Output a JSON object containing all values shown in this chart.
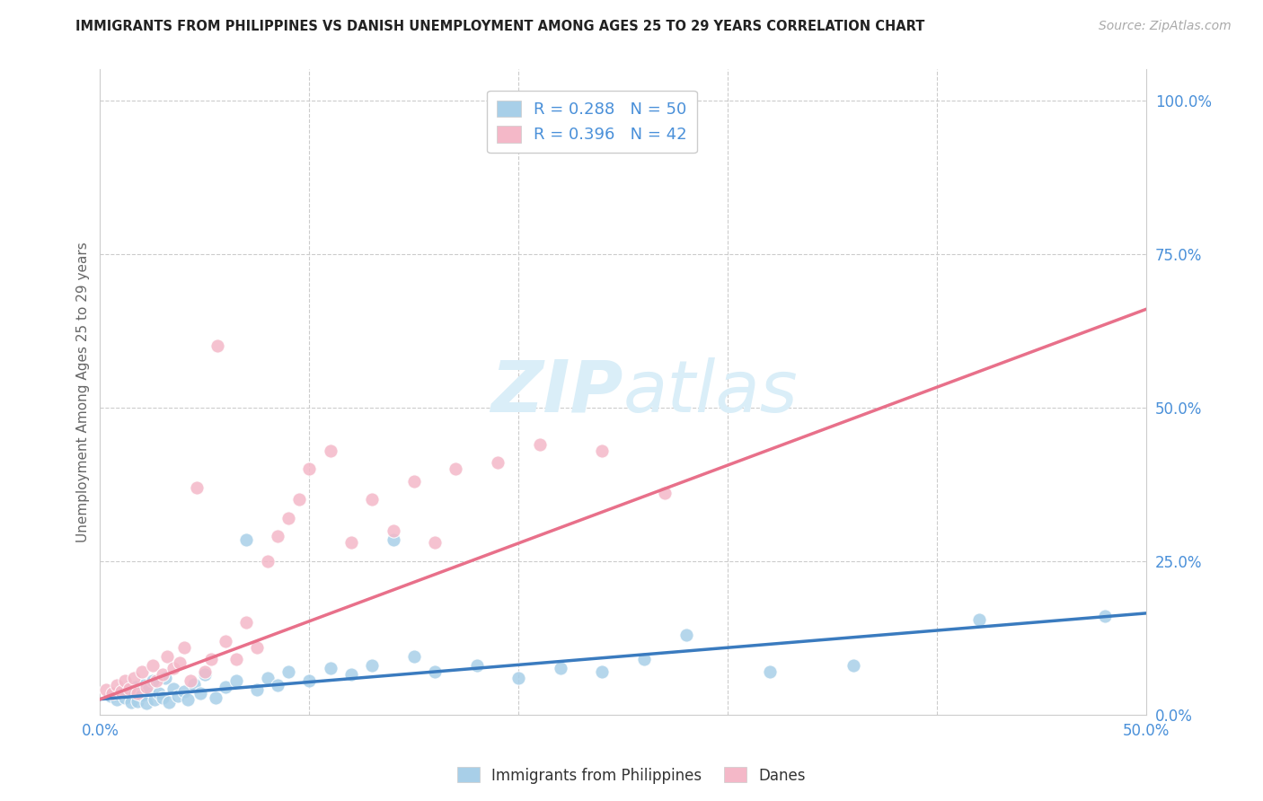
{
  "title": "IMMIGRANTS FROM PHILIPPINES VS DANISH UNEMPLOYMENT AMONG AGES 25 TO 29 YEARS CORRELATION CHART",
  "source": "Source: ZipAtlas.com",
  "ylabel": "Unemployment Among Ages 25 to 29 years",
  "xlim": [
    0.0,
    0.5
  ],
  "ylim": [
    0.0,
    1.05
  ],
  "legend_label1": "Immigrants from Philippines",
  "legend_label2": "Danes",
  "R1": 0.288,
  "N1": 50,
  "R2": 0.396,
  "N2": 42,
  "color_blue": "#a8cfe8",
  "color_pink": "#f4b8c8",
  "color_blue_line": "#3a7bbf",
  "color_pink_line": "#e8708a",
  "color_axis_text": "#4a90d9",
  "watermark_color": "#daeef8",
  "blue_scatter_x": [
    0.005,
    0.008,
    0.01,
    0.012,
    0.015,
    0.016,
    0.017,
    0.018,
    0.02,
    0.021,
    0.022,
    0.023,
    0.025,
    0.026,
    0.028,
    0.03,
    0.031,
    0.033,
    0.035,
    0.037,
    0.04,
    0.042,
    0.045,
    0.048,
    0.05,
    0.055,
    0.06,
    0.065,
    0.07,
    0.075,
    0.08,
    0.085,
    0.09,
    0.1,
    0.11,
    0.12,
    0.13,
    0.14,
    0.15,
    0.16,
    0.18,
    0.2,
    0.22,
    0.24,
    0.26,
    0.28,
    0.32,
    0.36,
    0.42,
    0.48
  ],
  "blue_scatter_y": [
    0.03,
    0.025,
    0.035,
    0.028,
    0.02,
    0.038,
    0.045,
    0.022,
    0.032,
    0.048,
    0.018,
    0.04,
    0.055,
    0.025,
    0.035,
    0.028,
    0.06,
    0.02,
    0.042,
    0.03,
    0.038,
    0.025,
    0.05,
    0.035,
    0.065,
    0.028,
    0.045,
    0.055,
    0.285,
    0.04,
    0.06,
    0.048,
    0.07,
    0.055,
    0.075,
    0.065,
    0.08,
    0.285,
    0.095,
    0.07,
    0.08,
    0.06,
    0.075,
    0.07,
    0.09,
    0.13,
    0.07,
    0.08,
    0.155,
    0.16
  ],
  "pink_scatter_x": [
    0.003,
    0.006,
    0.008,
    0.01,
    0.012,
    0.014,
    0.016,
    0.018,
    0.02,
    0.022,
    0.025,
    0.027,
    0.03,
    0.032,
    0.035,
    0.038,
    0.04,
    0.043,
    0.046,
    0.05,
    0.053,
    0.056,
    0.06,
    0.065,
    0.07,
    0.075,
    0.08,
    0.085,
    0.09,
    0.095,
    0.1,
    0.11,
    0.12,
    0.13,
    0.14,
    0.15,
    0.16,
    0.17,
    0.19,
    0.21,
    0.24,
    0.27
  ],
  "pink_scatter_y": [
    0.04,
    0.035,
    0.048,
    0.038,
    0.055,
    0.042,
    0.06,
    0.035,
    0.07,
    0.045,
    0.08,
    0.055,
    0.065,
    0.095,
    0.075,
    0.085,
    0.11,
    0.055,
    0.37,
    0.07,
    0.09,
    0.6,
    0.12,
    0.09,
    0.15,
    0.11,
    0.25,
    0.29,
    0.32,
    0.35,
    0.4,
    0.43,
    0.28,
    0.35,
    0.3,
    0.38,
    0.28,
    0.4,
    0.41,
    0.44,
    0.43,
    0.36
  ],
  "blue_trend_x": [
    0.0,
    0.5
  ],
  "blue_trend_y": [
    0.025,
    0.165
  ],
  "pink_trend_x": [
    0.0,
    0.5
  ],
  "pink_trend_y": [
    0.025,
    0.66
  ]
}
